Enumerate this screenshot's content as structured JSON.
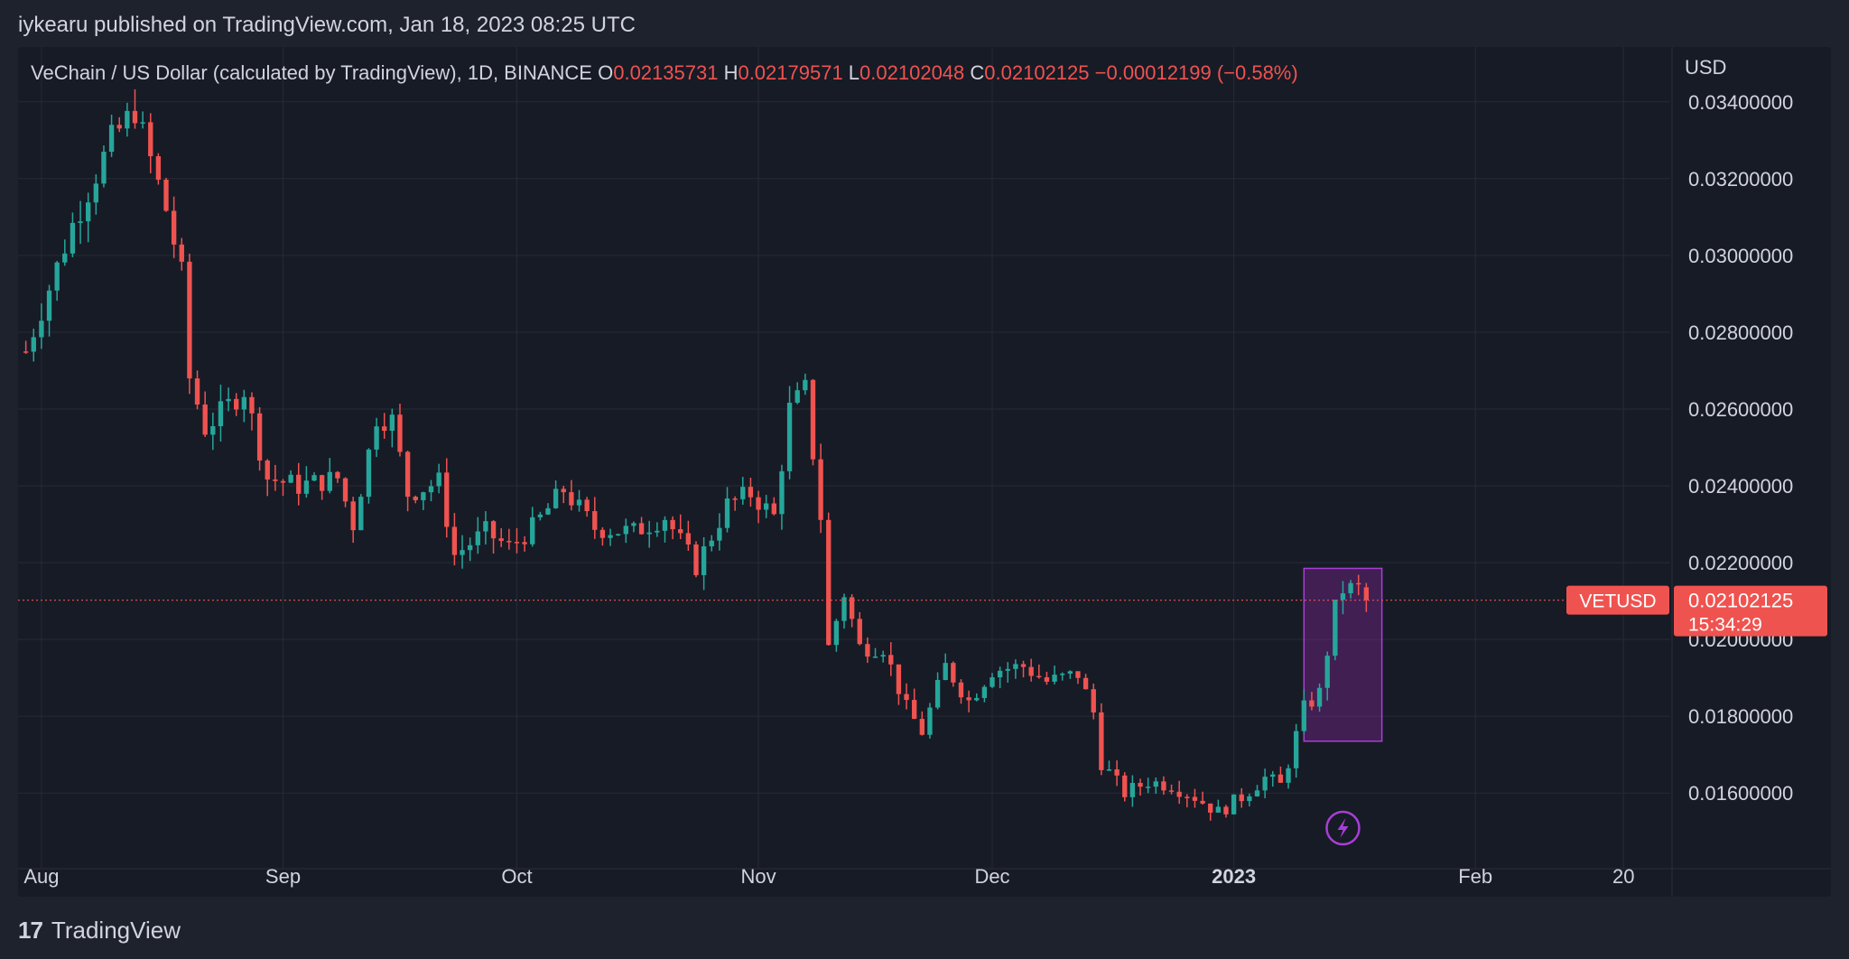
{
  "header": {
    "text": "iykearu published on TradingView.com, Jan 18, 2023 08:25 UTC"
  },
  "legend": {
    "symbol": "VeChain / US Dollar (calculated by TradingView), 1D, BINANCE",
    "o_label": "O",
    "o": "0.02135731",
    "h_label": "H",
    "h": "0.02179571",
    "l_label": "L",
    "l": "0.02102048",
    "c_label": "C",
    "c": "0.02102125",
    "change": "−0.00012199 (−0.58%)"
  },
  "price_axis": {
    "unit": "USD"
  },
  "last_price": {
    "ticker": "VETUSD",
    "price": "0.02102125",
    "countdown": "15:34:29"
  },
  "footer": {
    "brand": "TradingView"
  },
  "colors": {
    "up": "#26a69a",
    "down": "#ef5350",
    "grid": "#262b37",
    "text": "#d1d4dc",
    "box": "#a83fd6"
  },
  "icons": {
    "flash": "lightning-bolt-icon",
    "logo": "tradingview-logo-icon"
  },
  "chart_data": {
    "type": "candlestick",
    "title": "VeChain / US Dollar (calculated by TradingView), 1D, BINANCE",
    "ylim": [
      0.0145,
      0.0343
    ],
    "xlim": [
      "2022-07-29",
      "2023-02-26"
    ],
    "y_ticks": [
      "0.03400000",
      "0.03200000",
      "0.03000000",
      "0.02800000",
      "0.02600000",
      "0.02400000",
      "0.02200000",
      "0.02000000",
      "0.01800000",
      "0.01600000"
    ],
    "x_ticks": [
      {
        "label": "Aug",
        "date": "2022-08-01"
      },
      {
        "label": "Sep",
        "date": "2022-09-01"
      },
      {
        "label": "Oct",
        "date": "2022-10-01"
      },
      {
        "label": "Nov",
        "date": "2022-11-01"
      },
      {
        "label": "Dec",
        "date": "2022-12-01"
      },
      {
        "label": "2023",
        "date": "2023-01-01"
      },
      {
        "label": "Feb",
        "date": "2023-02-01"
      },
      {
        "label": "20",
        "date": "2023-02-20"
      }
    ],
    "grid": true,
    "last_close": 0.02102125,
    "highlight_box": {
      "x_start": "2023-01-10",
      "x_end": "2023-01-20",
      "y_low": 0.01735,
      "y_high": 0.02185
    },
    "anchors": [
      [
        "2022-07-30",
        0.0275
      ],
      [
        "2022-08-05",
        0.0308
      ],
      [
        "2022-08-10",
        0.033
      ],
      [
        "2022-08-13",
        0.0338
      ],
      [
        "2022-08-17",
        0.0312
      ],
      [
        "2022-08-19",
        0.0295
      ],
      [
        "2022-08-20",
        0.0268
      ],
      [
        "2022-08-22",
        0.0255
      ],
      [
        "2022-08-27",
        0.0265
      ],
      [
        "2022-08-30",
        0.0242
      ],
      [
        "2022-09-03",
        0.024
      ],
      [
        "2022-09-08",
        0.0242
      ],
      [
        "2022-09-10",
        0.023
      ],
      [
        "2022-09-13",
        0.0258
      ],
      [
        "2022-09-15",
        0.0257
      ],
      [
        "2022-09-17",
        0.0238
      ],
      [
        "2022-09-21",
        0.0241
      ],
      [
        "2022-09-23",
        0.0222
      ],
      [
        "2022-09-27",
        0.0228
      ],
      [
        "2022-09-30",
        0.0224
      ],
      [
        "2022-10-03",
        0.0229
      ],
      [
        "2022-10-07",
        0.0239
      ],
      [
        "2022-10-11",
        0.0229
      ],
      [
        "2022-10-16",
        0.0228
      ],
      [
        "2022-10-20",
        0.0232
      ],
      [
        "2022-10-24",
        0.0219
      ],
      [
        "2022-10-28",
        0.0235
      ],
      [
        "2022-10-31",
        0.0238
      ],
      [
        "2022-11-03",
        0.0232
      ],
      [
        "2022-11-05",
        0.026
      ],
      [
        "2022-11-07",
        0.0265
      ],
      [
        "2022-11-09",
        0.0232
      ],
      [
        "2022-11-10",
        0.0198
      ],
      [
        "2022-11-12",
        0.0212
      ],
      [
        "2022-11-14",
        0.0198
      ],
      [
        "2022-11-17",
        0.0198
      ],
      [
        "2022-11-20",
        0.0182
      ],
      [
        "2022-11-22",
        0.0176
      ],
      [
        "2022-11-25",
        0.0193
      ],
      [
        "2022-11-28",
        0.0184
      ],
      [
        "2022-12-01",
        0.0192
      ],
      [
        "2022-12-05",
        0.0193
      ],
      [
        "2022-12-08",
        0.0189
      ],
      [
        "2022-12-12",
        0.0191
      ],
      [
        "2022-12-14",
        0.0181
      ],
      [
        "2022-12-15",
        0.0168
      ],
      [
        "2022-12-18",
        0.016
      ],
      [
        "2022-12-21",
        0.0163
      ],
      [
        "2022-12-24",
        0.0162
      ],
      [
        "2022-12-27",
        0.0159
      ],
      [
        "2022-12-30",
        0.0155
      ],
      [
        "2023-01-02",
        0.0159
      ],
      [
        "2023-01-05",
        0.0164
      ],
      [
        "2023-01-07",
        0.0162
      ],
      [
        "2023-01-08",
        0.0168
      ],
      [
        "2023-01-10",
        0.0182
      ],
      [
        "2023-01-12",
        0.0186
      ],
      [
        "2023-01-14",
        0.0208
      ],
      [
        "2023-01-15",
        0.0213
      ],
      [
        "2023-01-17",
        0.02135731
      ],
      [
        "2023-01-18",
        0.02102125
      ]
    ]
  }
}
